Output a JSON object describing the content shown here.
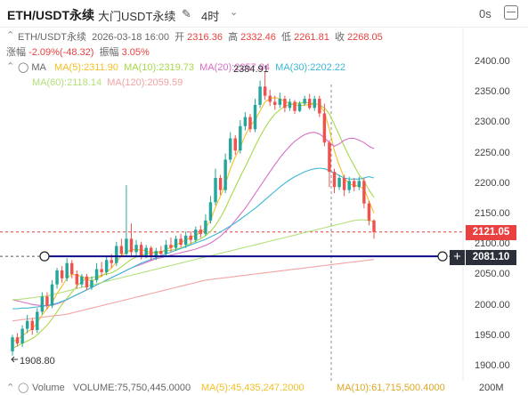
{
  "header": {
    "symbol": "ETH/USDT永续",
    "exchange": "大门USDT永续",
    "interval": "4时",
    "timer": "0s"
  },
  "ohlc": {
    "name": "ETH/USDT永续",
    "date": "2026-03-18 16:00",
    "open_label": "开",
    "open": "2316.36",
    "high_label": "高",
    "high": "2332.46",
    "low_label": "低",
    "low": "2261.81",
    "close_label": "收",
    "close": "2268.05",
    "change_label": "涨幅",
    "change": "-2.09%(-48.32)",
    "amp_label": "振幅",
    "amp": "3.05%"
  },
  "ma": {
    "label": "MA",
    "ma5": "MA(5):2311.90",
    "ma10": "MA(10):2319.73",
    "ma20": "MA(20):2257.84",
    "ma30": "MA(30):2202.22",
    "ma60": "MA(60):2118.14",
    "ma120": "MA(120):2059.59"
  },
  "colors": {
    "up": "#26a69a",
    "down": "#ef5350",
    "ma5": "#f4c025",
    "ma10": "#a8d84a",
    "ma20": "#d86fc7",
    "ma30": "#3db7d6",
    "ma60": "#b4e07a",
    "ma120": "#f2a3a3",
    "trendline": "#0d0d8a",
    "price_red": "#e8413f",
    "price_dark": "#2b2f3a"
  },
  "price_axis": {
    "labels": [
      "2400.00",
      "2350.00",
      "2300.00",
      "2250.00",
      "2200.00",
      "2150.00",
      "2100.00",
      "2050.00",
      "2000.00",
      "1950.00",
      "1900.00"
    ],
    "current_price": "2121.05",
    "line_price": "2081.10"
  },
  "annotations": {
    "high_marker": "2384.91",
    "low_marker": "1908.80"
  },
  "volume": {
    "label": "Volume",
    "volume": "VOLUME:75,750,445.0000",
    "ma5": "MA(5):45,435,247.2000",
    "ma10": "MA(10):61,715,500.4000"
  },
  "chart_data": {
    "type": "candlestick",
    "ylim": [
      1895,
      2410
    ],
    "high_price": 2384.91,
    "low_price": 1908.8,
    "candles": [
      [
        1925,
        1948,
        1918,
        1952
      ],
      [
        1948,
        1938,
        1933,
        1955
      ],
      [
        1938,
        1962,
        1932,
        1968
      ],
      [
        1962,
        1975,
        1955,
        1985
      ],
      [
        1975,
        1960,
        1952,
        1980
      ],
      [
        1960,
        1990,
        1955,
        1996
      ],
      [
        1990,
        2015,
        1985,
        2022
      ],
      [
        2015,
        2000,
        1994,
        2022
      ],
      [
        2000,
        2035,
        1996,
        2042
      ],
      [
        2035,
        2058,
        2028,
        2062
      ],
      [
        2058,
        2045,
        2038,
        2065
      ],
      [
        2045,
        2070,
        2040,
        2078
      ],
      [
        2070,
        2052,
        2045,
        2075
      ],
      [
        2052,
        2035,
        2028,
        2058
      ],
      [
        2035,
        2048,
        2030,
        2052
      ],
      [
        2048,
        2030,
        2025,
        2052
      ],
      [
        2030,
        2042,
        2026,
        2048
      ],
      [
        2042,
        2060,
        2038,
        2070
      ],
      [
        2060,
        2055,
        2048,
        2072
      ],
      [
        2055,
        2075,
        2050,
        2082
      ],
      [
        2075,
        2070,
        2062,
        2085
      ],
      [
        2070,
        2098,
        2065,
        2105
      ],
      [
        2098,
        2085,
        2080,
        2110
      ],
      [
        2085,
        2110,
        2080,
        2198
      ],
      [
        2110,
        2088,
        2080,
        2135
      ],
      [
        2088,
        2100,
        2082,
        2108
      ],
      [
        2100,
        2082,
        2076,
        2105
      ],
      [
        2082,
        2095,
        2078,
        2100
      ],
      [
        2095,
        2080,
        2074,
        2098
      ],
      [
        2080,
        2090,
        2075,
        2095
      ],
      [
        2090,
        2085,
        2080,
        2098
      ],
      [
        2085,
        2100,
        2080,
        2108
      ],
      [
        2100,
        2095,
        2088,
        2112
      ],
      [
        2095,
        2110,
        2090,
        2115
      ],
      [
        2110,
        2100,
        2096,
        2118
      ],
      [
        2100,
        2115,
        2095,
        2122
      ],
      [
        2115,
        2108,
        2102,
        2122
      ],
      [
        2108,
        2125,
        2104,
        2130
      ],
      [
        2125,
        2118,
        2112,
        2132
      ],
      [
        2118,
        2140,
        2115,
        2150
      ],
      [
        2140,
        2170,
        2135,
        2180
      ],
      [
        2170,
        2210,
        2165,
        2225
      ],
      [
        2210,
        2190,
        2182,
        2215
      ],
      [
        2190,
        2240,
        2185,
        2250
      ],
      [
        2240,
        2275,
        2235,
        2285
      ],
      [
        2275,
        2255,
        2248,
        2280
      ],
      [
        2255,
        2295,
        2250,
        2305
      ],
      [
        2295,
        2310,
        2288,
        2318
      ],
      [
        2310,
        2290,
        2285,
        2315
      ],
      [
        2290,
        2330,
        2285,
        2340
      ],
      [
        2330,
        2360,
        2325,
        2370
      ],
      [
        2360,
        2345,
        2338,
        2385
      ],
      [
        2345,
        2335,
        2328,
        2355
      ],
      [
        2335,
        2330,
        2322,
        2345
      ],
      [
        2330,
        2340,
        2325,
        2350
      ],
      [
        2340,
        2325,
        2318,
        2345
      ],
      [
        2325,
        2335,
        2320,
        2340
      ],
      [
        2335,
        2320,
        2315,
        2338
      ],
      [
        2320,
        2332,
        2318,
        2336
      ],
      [
        2332,
        2340,
        2328,
        2345
      ],
      [
        2340,
        2325,
        2322,
        2348
      ],
      [
        2325,
        2340,
        2320,
        2345
      ],
      [
        2340,
        2316,
        2310,
        2345
      ],
      [
        2316,
        2268,
        2262,
        2332
      ],
      [
        2268,
        2220,
        2195,
        2272
      ],
      [
        2220,
        2195,
        2185,
        2225
      ],
      [
        2195,
        2210,
        2190,
        2215
      ],
      [
        2210,
        2190,
        2180,
        2215
      ],
      [
        2190,
        2205,
        2185,
        2212
      ],
      [
        2205,
        2195,
        2188,
        2210
      ],
      [
        2195,
        2205,
        2190,
        2212
      ],
      [
        2205,
        2168,
        2160,
        2210
      ],
      [
        2168,
        2140,
        2132,
        2172
      ],
      [
        2140,
        2121,
        2110,
        2142
      ]
    ],
    "ma_series": [
      {
        "name": "MA5",
        "values": [
          1940,
          1945,
          1950,
          1957,
          1962,
          1972,
          1985,
          1995,
          2005,
          2020,
          2032,
          2045,
          2052,
          2050,
          2048,
          2044,
          2040,
          2045,
          2048,
          2055,
          2062,
          2072,
          2082,
          2088,
          2092,
          2092,
          2092,
          2090,
          2088,
          2086,
          2088,
          2092,
          2096,
          2100,
          2104,
          2108,
          2112,
          2116,
          2120,
          2128,
          2140,
          2162,
          2180,
          2200,
          2225,
          2245,
          2260,
          2280,
          2295,
          2305,
          2320,
          2335,
          2340,
          2342,
          2340,
          2336,
          2332,
          2330,
          2328,
          2330,
          2330,
          2332,
          2330,
          2318,
          2290,
          2255,
          2230,
          2210,
          2200,
          2198,
          2196,
          2192,
          2172,
          2152
        ]
      },
      {
        "name": "MA10",
        "values": [
          1930,
          1934,
          1938,
          1942,
          1946,
          1952,
          1960,
          1968,
          1978,
          1990,
          2002,
          2012,
          2022,
          2032,
          2040,
          2045,
          2046,
          2048,
          2050,
          2052,
          2054,
          2058,
          2064,
          2070,
          2076,
          2080,
          2083,
          2085,
          2087,
          2088,
          2089,
          2090,
          2091,
          2093,
          2095,
          2098,
          2102,
          2106,
          2110,
          2115,
          2122,
          2132,
          2145,
          2160,
          2178,
          2195,
          2212,
          2228,
          2245,
          2262,
          2278,
          2292,
          2305,
          2315,
          2322,
          2328,
          2330,
          2332,
          2333,
          2334,
          2333,
          2332,
          2330,
          2325,
          2315,
          2298,
          2280,
          2262,
          2245,
          2230,
          2215,
          2205,
          2190,
          2178
        ]
      },
      {
        "name": "MA20",
        "values": [
          2010,
          2008,
          2006,
          2004,
          2002,
          2001,
          2000,
          2000,
          2001,
          2003,
          2006,
          2010,
          2014,
          2018,
          2022,
          2026,
          2030,
          2034,
          2038,
          2042,
          2046,
          2050,
          2054,
          2058,
          2062,
          2065,
          2068,
          2071,
          2074,
          2077,
          2079,
          2081,
          2083,
          2085,
          2087,
          2089,
          2091,
          2093,
          2096,
          2099,
          2103,
          2108,
          2114,
          2122,
          2130,
          2140,
          2150,
          2160,
          2172,
          2184,
          2196,
          2208,
          2220,
          2232,
          2243,
          2253,
          2262,
          2270,
          2276,
          2281,
          2284,
          2285,
          2282,
          2276,
          2268,
          2262,
          2266,
          2272,
          2275,
          2275,
          2272,
          2268,
          2262,
          2258
        ]
      },
      {
        "name": "MA30",
        "values": [
          1995,
          1995,
          1996,
          1996,
          1997,
          1998,
          1999,
          2000,
          2002,
          2004,
          2007,
          2010,
          2014,
          2018,
          2022,
          2026,
          2030,
          2034,
          2038,
          2042,
          2046,
          2050,
          2054,
          2058,
          2062,
          2066,
          2070,
          2073,
          2076,
          2079,
          2082,
          2085,
          2088,
          2091,
          2094,
          2097,
          2100,
          2103,
          2106,
          2109,
          2113,
          2117,
          2121,
          2126,
          2131,
          2136,
          2142,
          2148,
          2154,
          2160,
          2167,
          2174,
          2181,
          2188,
          2195,
          2201,
          2207,
          2212,
          2216,
          2220,
          2223,
          2225,
          2226,
          2225,
          2222,
          2218,
          2214,
          2210,
          2208,
          2208,
          2208,
          2210,
          2212,
          2210
        ]
      },
      {
        "name": "MA60",
        "values": [
          2010,
          2010,
          2011,
          2012,
          2013,
          2014,
          2015,
          2016,
          2018,
          2020,
          2022,
          2024,
          2026,
          2028,
          2030,
          2032,
          2034,
          2036,
          2038,
          2040,
          2042,
          2044,
          2046,
          2048,
          2050,
          2052,
          2054,
          2056,
          2058,
          2060,
          2062,
          2064,
          2066,
          2068,
          2070,
          2072,
          2074,
          2076,
          2078,
          2080,
          2082,
          2084,
          2086,
          2088,
          2090,
          2092,
          2094,
          2096,
          2098,
          2100,
          2102,
          2104,
          2106,
          2108,
          2110,
          2112,
          2114,
          2116,
          2118,
          2120,
          2122,
          2124,
          2126,
          2128,
          2130,
          2132,
          2134,
          2136,
          2138,
          2140,
          2141,
          2141,
          2140,
          2138
        ]
      },
      {
        "name": "MA120",
        "values": [
          1975,
          1976,
          1977,
          1978,
          1979,
          1980,
          1981,
          1982,
          1983,
          1984,
          1985,
          1986,
          1988,
          1990,
          1992,
          1994,
          1996,
          1998,
          2000,
          2002,
          2004,
          2006,
          2008,
          2010,
          2012,
          2014,
          2016,
          2018,
          2020,
          2022,
          2024,
          2026,
          2028,
          2030,
          2032,
          2034,
          2036,
          2038,
          2040,
          2042,
          2043,
          2044,
          2045,
          2046,
          2047,
          2048,
          2049,
          2050,
          2051,
          2052,
          2053,
          2054,
          2055,
          2056,
          2057,
          2058,
          2059,
          2060,
          2061,
          2062,
          2063,
          2064,
          2065,
          2066,
          2067,
          2068,
          2069,
          2070,
          2071,
          2072,
          2073,
          2074,
          2075,
          2076
        ]
      }
    ],
    "trendline_price": 2081.1,
    "current_price": 2121.05,
    "series_names": [
      "MA5",
      "MA10",
      "MA20",
      "MA30",
      "MA60",
      "MA120"
    ]
  }
}
